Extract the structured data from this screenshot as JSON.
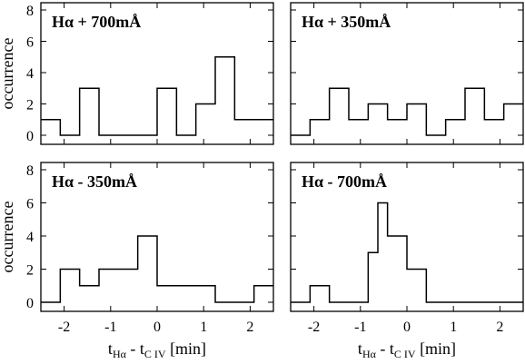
{
  "chart_data": {
    "type": "histogram",
    "shared": {
      "xlim": [
        -2.5,
        2.5
      ],
      "ylim": [
        0,
        8
      ],
      "bin_width": 0.417,
      "xticks": [
        -2,
        -1,
        0,
        1,
        2
      ],
      "yticks": [
        0,
        2,
        4,
        6,
        8
      ],
      "ylabel": "occurrence",
      "xlabel": {
        "main": "t",
        "sub1": "Hα",
        "mid": " - t",
        "sub2": "C IV",
        "tail": " [min]"
      }
    },
    "panels": [
      {
        "title": "Hα + 700mÅ",
        "position": "top-left",
        "bins": [
          {
            "x0": -2.5,
            "x1": -2.083,
            "count": 1
          },
          {
            "x0": -2.083,
            "x1": -1.667,
            "count": 0
          },
          {
            "x0": -1.667,
            "x1": -1.25,
            "count": 3
          },
          {
            "x0": -1.25,
            "x1": -0.833,
            "count": 0
          },
          {
            "x0": -0.833,
            "x1": -0.417,
            "count": 0
          },
          {
            "x0": -0.417,
            "x1": 0.0,
            "count": 0
          },
          {
            "x0": 0.0,
            "x1": 0.417,
            "count": 3
          },
          {
            "x0": 0.417,
            "x1": 0.833,
            "count": 0
          },
          {
            "x0": 0.833,
            "x1": 1.25,
            "count": 2
          },
          {
            "x0": 1.25,
            "x1": 1.667,
            "count": 5
          },
          {
            "x0": 1.667,
            "x1": 2.083,
            "count": 1
          },
          {
            "x0": 2.083,
            "x1": 2.5,
            "count": 1
          }
        ]
      },
      {
        "title": "Hα + 350mÅ",
        "position": "top-right",
        "bins": [
          {
            "x0": -2.5,
            "x1": -2.083,
            "count": 0
          },
          {
            "x0": -2.083,
            "x1": -1.667,
            "count": 1
          },
          {
            "x0": -1.667,
            "x1": -1.25,
            "count": 3
          },
          {
            "x0": -1.25,
            "x1": -0.833,
            "count": 1
          },
          {
            "x0": -0.833,
            "x1": -0.417,
            "count": 2
          },
          {
            "x0": -0.417,
            "x1": 0.0,
            "count": 1
          },
          {
            "x0": 0.0,
            "x1": 0.417,
            "count": 2
          },
          {
            "x0": 0.417,
            "x1": 0.833,
            "count": 0
          },
          {
            "x0": 0.833,
            "x1": 1.25,
            "count": 1
          },
          {
            "x0": 1.25,
            "x1": 1.667,
            "count": 3
          },
          {
            "x0": 1.667,
            "x1": 2.083,
            "count": 1
          },
          {
            "x0": 2.083,
            "x1": 2.5,
            "count": 2
          }
        ]
      },
      {
        "title": "Hα - 350mÅ",
        "position": "bottom-left",
        "bins": [
          {
            "x0": -2.5,
            "x1": -2.083,
            "count": 0
          },
          {
            "x0": -2.083,
            "x1": -1.667,
            "count": 2
          },
          {
            "x0": -1.667,
            "x1": -1.25,
            "count": 1
          },
          {
            "x0": -1.25,
            "x1": -0.833,
            "count": 2
          },
          {
            "x0": -0.833,
            "x1": -0.417,
            "count": 2
          },
          {
            "x0": -0.417,
            "x1": 0.0,
            "count": 4
          },
          {
            "x0": 0.0,
            "x1": 0.417,
            "count": 1
          },
          {
            "x0": 0.417,
            "x1": 0.833,
            "count": 1
          },
          {
            "x0": 0.833,
            "x1": 1.25,
            "count": 1
          },
          {
            "x0": 1.25,
            "x1": 1.667,
            "count": 0
          },
          {
            "x0": 1.667,
            "x1": 2.083,
            "count": 0
          },
          {
            "x0": 2.083,
            "x1": 2.5,
            "count": 1
          }
        ]
      },
      {
        "title": "Hα - 700mÅ",
        "position": "bottom-right",
        "bins": [
          {
            "x0": -2.5,
            "x1": -2.083,
            "count": 0
          },
          {
            "x0": -2.083,
            "x1": -1.667,
            "count": 1
          },
          {
            "x0": -1.667,
            "x1": -1.25,
            "count": 0
          },
          {
            "x0": -1.25,
            "x1": -0.833,
            "count": 0
          },
          {
            "x0": -0.833,
            "x1": -0.625,
            "count": 3
          },
          {
            "x0": -0.625,
            "x1": -0.417,
            "count": 6
          },
          {
            "x0": -0.417,
            "x1": -0.208,
            "count": 4
          },
          {
            "x0": -0.208,
            "x1": 0.0,
            "count": 4
          },
          {
            "x0": 0.0,
            "x1": 0.417,
            "count": 2
          },
          {
            "x0": 0.417,
            "x1": 0.833,
            "count": 0
          },
          {
            "x0": 0.833,
            "x1": 2.5,
            "count": 0
          }
        ]
      }
    ]
  }
}
